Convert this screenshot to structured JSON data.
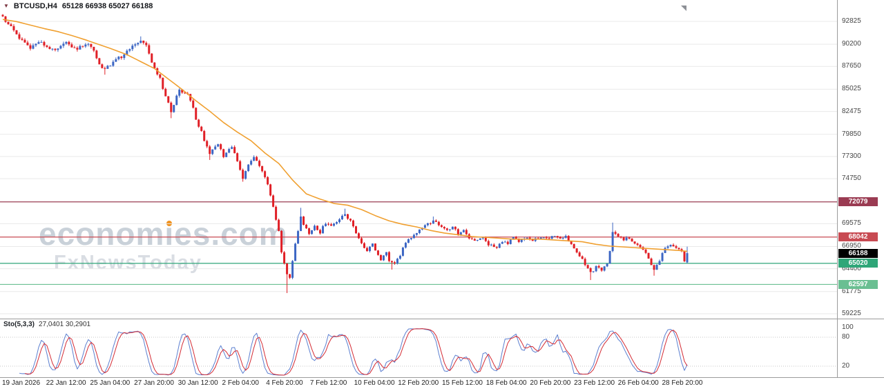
{
  "header": {
    "dropdown_icon": "▼",
    "symbol_label": "BTCUSD,H4",
    "quote": "65128 66938 65027 66188"
  },
  "watermark": {
    "brand": "economies.com",
    "brand_pre": "econom",
    "brand_post": "es.com",
    "sub": "FxNewsToday"
  },
  "chart_data": {
    "type": "candlestick",
    "symbol": "BTCUSD",
    "timeframe": "H4",
    "current_bar": {
      "open": 65128,
      "high": 66938,
      "low": 65027,
      "close": 66188
    },
    "y_axis_ticks": [
      92825,
      90200,
      87650,
      85025,
      82475,
      79850,
      77300,
      74750,
      69575,
      66950,
      64400,
      61775,
      59225
    ],
    "x_axis_labels": [
      "19 Jan 2026",
      "22 Jan 12:00",
      "25 Jan 04:00",
      "27 Jan 20:00",
      "30 Jan 12:00",
      "2 Feb 04:00",
      "4 Feb 20:00",
      "7 Feb 12:00",
      "10 Feb 04:00",
      "12 Feb 20:00",
      "15 Feb 12:00",
      "18 Feb 04:00",
      "20 Feb 20:00",
      "23 Feb 12:00",
      "26 Feb 04:00",
      "28 Feb 20:00"
    ],
    "levels": [
      {
        "price": 72079,
        "label": "72079",
        "color": "#9a3b52"
      },
      {
        "price": 68042,
        "label": "68042",
        "color": "#c84a52"
      },
      {
        "price": 65020,
        "label": "65020",
        "color": "#2fa678"
      },
      {
        "price": 62597,
        "label": "62597",
        "color": "#6abf92"
      }
    ],
    "current_price_label": {
      "price": 66188,
      "label": "66188",
      "color": "#000000"
    },
    "colors": {
      "up": "#3c66c4",
      "down": "#e01f26",
      "grid": "#e9e9e9",
      "frame": "#9b9b9b",
      "ma": "#f0a030",
      "stoch_main": "#5b7fd0",
      "stoch_signal": "#d42a33"
    },
    "candles": {
      "count": 249,
      "close_path_anchors": [
        [
          0,
          93200
        ],
        [
          2,
          92500
        ],
        [
          4,
          91800
        ],
        [
          6,
          91000
        ],
        [
          8,
          90200
        ],
        [
          10,
          89700
        ],
        [
          12,
          90100
        ],
        [
          14,
          90400
        ],
        [
          16,
          89900
        ],
        [
          19,
          89400
        ],
        [
          21,
          89900
        ],
        [
          23,
          90400
        ],
        [
          25,
          90000
        ],
        [
          27,
          89700
        ],
        [
          29,
          90100
        ],
        [
          31,
          90400
        ],
        [
          33,
          89300
        ],
        [
          35,
          88000
        ],
        [
          37,
          87300
        ],
        [
          39,
          87900
        ],
        [
          41,
          88400
        ],
        [
          44,
          89000
        ],
        [
          46,
          89600
        ],
        [
          48,
          90200
        ],
        [
          50,
          90700
        ],
        [
          52,
          90000
        ],
        [
          53,
          89200
        ],
        [
          55,
          87300
        ],
        [
          57,
          86200
        ],
        [
          58,
          85200
        ],
        [
          60,
          83600
        ],
        [
          61,
          82300
        ],
        [
          63,
          84200
        ],
        [
          64,
          85000
        ],
        [
          66,
          84600
        ],
        [
          67,
          84300
        ],
        [
          69,
          82800
        ],
        [
          70,
          81600
        ],
        [
          72,
          80200
        ],
        [
          73,
          79200
        ],
        [
          75,
          77700
        ],
        [
          77,
          78300
        ],
        [
          78,
          78800
        ],
        [
          80,
          77300
        ],
        [
          82,
          78000
        ],
        [
          83,
          78500
        ],
        [
          85,
          76600
        ],
        [
          87,
          74900
        ],
        [
          89,
          76300
        ],
        [
          91,
          77200
        ],
        [
          93,
          76100
        ],
        [
          95,
          74800
        ],
        [
          96,
          74100
        ],
        [
          98,
          71600
        ],
        [
          100,
          68600
        ],
        [
          101,
          66300
        ],
        [
          103,
          63900
        ],
        [
          104,
          63400
        ],
        [
          106,
          67300
        ],
        [
          108,
          70300
        ],
        [
          109,
          69500
        ],
        [
          111,
          68300
        ],
        [
          113,
          69300
        ],
        [
          115,
          68600
        ],
        [
          117,
          69700
        ],
        [
          119,
          69200
        ],
        [
          121,
          69800
        ],
        [
          122,
          70200
        ],
        [
          124,
          70700
        ],
        [
          126,
          69900
        ],
        [
          128,
          68600
        ],
        [
          130,
          67300
        ],
        [
          132,
          66400
        ],
        [
          134,
          67200
        ],
        [
          135,
          66400
        ],
        [
          137,
          65400
        ],
        [
          139,
          66200
        ],
        [
          140,
          65300
        ],
        [
          142,
          64900
        ],
        [
          144,
          66000
        ],
        [
          146,
          67400
        ],
        [
          148,
          68000
        ],
        [
          149,
          68300
        ],
        [
          151,
          69000
        ],
        [
          153,
          69400
        ],
        [
          156,
          69900
        ],
        [
          158,
          69400
        ],
        [
          161,
          68800
        ],
        [
          163,
          69200
        ],
        [
          165,
          68400
        ],
        [
          167,
          68800
        ],
        [
          169,
          68000
        ],
        [
          171,
          67500
        ],
        [
          174,
          67900
        ],
        [
          176,
          67200
        ],
        [
          179,
          66900
        ],
        [
          181,
          67600
        ],
        [
          183,
          67300
        ],
        [
          185,
          67900
        ],
        [
          187,
          67500
        ],
        [
          190,
          68000
        ],
        [
          192,
          67700
        ],
        [
          195,
          68100
        ],
        [
          197,
          67900
        ],
        [
          200,
          68200
        ],
        [
          202,
          67800
        ],
        [
          204,
          68100
        ],
        [
          206,
          67300
        ],
        [
          208,
          66400
        ],
        [
          210,
          65500
        ],
        [
          212,
          64400
        ],
        [
          213,
          63900
        ],
        [
          215,
          64600
        ],
        [
          217,
          64200
        ],
        [
          219,
          65100
        ],
        [
          220,
          66300
        ],
        [
          221,
          68700
        ],
        [
          223,
          68200
        ],
        [
          225,
          67800
        ],
        [
          227,
          68000
        ],
        [
          229,
          67300
        ],
        [
          231,
          66800
        ],
        [
          233,
          66300
        ],
        [
          235,
          64900
        ],
        [
          236,
          64200
        ],
        [
          238,
          65400
        ],
        [
          240,
          66800
        ],
        [
          242,
          67100
        ],
        [
          244,
          66800
        ],
        [
          246,
          66300
        ],
        [
          247,
          65200
        ],
        [
          248,
          66188
        ]
      ],
      "wick_overrides": {
        "0": {
          "high": 93600
        },
        "37": {
          "low": 86700
        },
        "50": {
          "high": 91100
        },
        "61": {
          "low": 81700
        },
        "75": {
          "low": 76900
        },
        "87": {
          "low": 74400
        },
        "103": {
          "low": 61600
        },
        "108": {
          "high": 71400
        },
        "124": {
          "high": 71300
        },
        "141": {
          "low": 64300
        },
        "156": {
          "high": 70400
        },
        "213": {
          "low": 63100
        },
        "221": {
          "high": 69700
        },
        "236": {
          "low": 63600
        }
      }
    },
    "moving_average": {
      "anchors": [
        [
          0,
          93050
        ],
        [
          5,
          92800
        ],
        [
          10,
          92400
        ],
        [
          15,
          92000
        ],
        [
          20,
          91650
        ],
        [
          25,
          91200
        ],
        [
          30,
          90700
        ],
        [
          35,
          90150
        ],
        [
          40,
          89600
        ],
        [
          45,
          89000
        ],
        [
          50,
          88200
        ],
        [
          55,
          87400
        ],
        [
          60,
          86200
        ],
        [
          65,
          85000
        ],
        [
          70,
          83700
        ],
        [
          75,
          82500
        ],
        [
          80,
          81200
        ],
        [
          85,
          80100
        ],
        [
          90,
          79100
        ],
        [
          95,
          77700
        ],
        [
          100,
          76500
        ],
        [
          105,
          74600
        ],
        [
          110,
          73000
        ],
        [
          115,
          72400
        ],
        [
          120,
          71900
        ],
        [
          125,
          71700
        ],
        [
          130,
          71200
        ],
        [
          135,
          70500
        ],
        [
          140,
          69900
        ],
        [
          145,
          69500
        ],
        [
          150,
          69200
        ],
        [
          155,
          68800
        ],
        [
          160,
          68500
        ],
        [
          165,
          68300
        ],
        [
          170,
          68100
        ],
        [
          175,
          68000
        ],
        [
          180,
          67900
        ],
        [
          185,
          67800
        ],
        [
          190,
          67800
        ],
        [
          195,
          67800
        ],
        [
          200,
          67700
        ],
        [
          205,
          67600
        ],
        [
          210,
          67500
        ],
        [
          215,
          67200
        ],
        [
          220,
          67000
        ],
        [
          225,
          66900
        ],
        [
          230,
          66800
        ],
        [
          235,
          66700
        ],
        [
          240,
          66600
        ],
        [
          245,
          66500
        ],
        [
          248,
          66400
        ]
      ]
    },
    "stochastic": {
      "label": "Sto(5,3,3)",
      "values": "27,0401 30,2901",
      "params": [
        5,
        3,
        3
      ],
      "scale_ticks": [
        100,
        80,
        20
      ],
      "guide_levels": [
        80,
        20
      ]
    }
  }
}
